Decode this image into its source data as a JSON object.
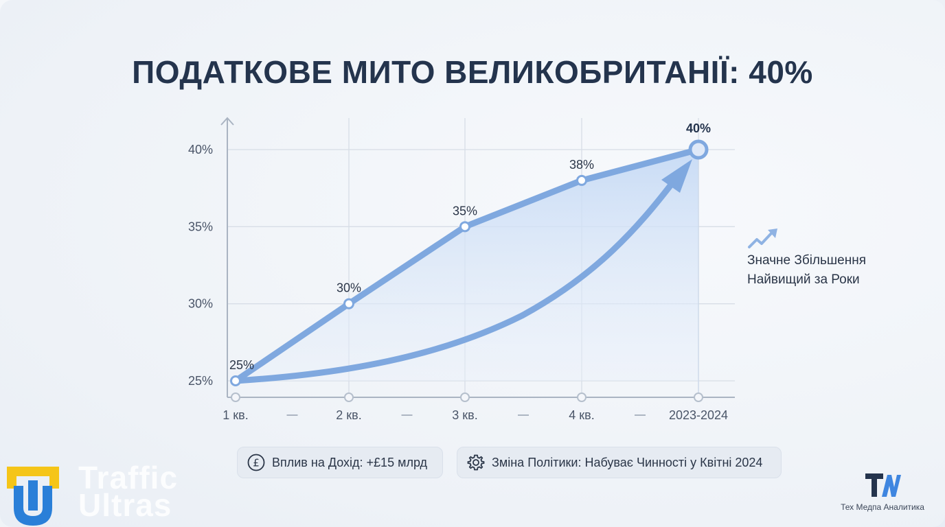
{
  "title": "ПОДАТКОВЕ МИТО ВЕЛИКОБРИТАНІЇ: 40%",
  "chart_data": {
    "type": "line",
    "categories": [
      "1 кв.",
      "2 кв.",
      "3 кв.",
      "4 кв.",
      "2023-2024"
    ],
    "series": [
      {
        "values": [
          25,
          30,
          35,
          38,
          40
        ]
      }
    ],
    "data_labels": [
      "25%",
      "30%",
      "35%",
      "38%",
      "40%"
    ],
    "y_ticks": [
      25,
      30,
      35,
      40
    ],
    "y_tick_labels": [
      "25%",
      "30%",
      "35%",
      "40%"
    ],
    "ylim": [
      24,
      42
    ],
    "grid": true,
    "xlabel": "",
    "ylabel": "",
    "line_color": "#7fa8df",
    "fill_color": "#cfe0f7"
  },
  "side_note": {
    "line1": "Значне Збільшення",
    "line2": "Найвищий за Роки",
    "icon": "trending-up-icon"
  },
  "info": {
    "revenue": {
      "icon": "pound-icon",
      "text": "Вплив на Дохід: +£15 млрд"
    },
    "policy": {
      "icon": "gear-icon",
      "text": "Зміна Політики: Набуває Чинності у Квітні 2024"
    }
  },
  "brand": {
    "name_line1": "Traffic",
    "name_line2": "Ultras",
    "accent": "#f5c518",
    "primary": "#2a7fd8"
  },
  "footer": {
    "caption": "Тех Медпа Аналитика"
  }
}
